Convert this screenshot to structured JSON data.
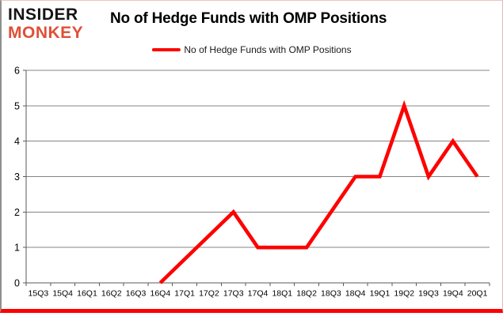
{
  "brand": {
    "line1": "INSIDER",
    "line2": "MONKEY",
    "line1_color": "#141414",
    "line2_color": "#df4f38"
  },
  "header": {
    "title": "No of Hedge Funds with OMP Positions"
  },
  "legend": {
    "label": "No of Hedge Funds with OMP Positions",
    "line_color": "#fe0000"
  },
  "chart_data": {
    "type": "line",
    "title": "No of Hedge Funds with OMP Positions",
    "categories": [
      "15Q3",
      "15Q4",
      "16Q1",
      "16Q2",
      "16Q3",
      "16Q4",
      "17Q1",
      "17Q2",
      "17Q3",
      "17Q4",
      "18Q1",
      "18Q2",
      "18Q3",
      "18Q4",
      "19Q1",
      "19Q2",
      "19Q3",
      "19Q4",
      "20Q1"
    ],
    "series": [
      {
        "name": "No of Hedge Funds with OMP Positions",
        "color": "#fe0000",
        "values": [
          null,
          null,
          null,
          null,
          null,
          0,
          null,
          null,
          2,
          1,
          1,
          1,
          2,
          3,
          3,
          5,
          3,
          4,
          3
        ]
      }
    ],
    "xlabel": "",
    "ylabel": "",
    "ylim": [
      0,
      6
    ],
    "yticks": [
      0,
      1,
      2,
      3,
      4,
      5,
      6
    ],
    "grid": "horizontal",
    "grid_color": "#848484",
    "axis_color": "#5a5a5a",
    "legend_position": "top-center",
    "connect_nulls": true
  }
}
